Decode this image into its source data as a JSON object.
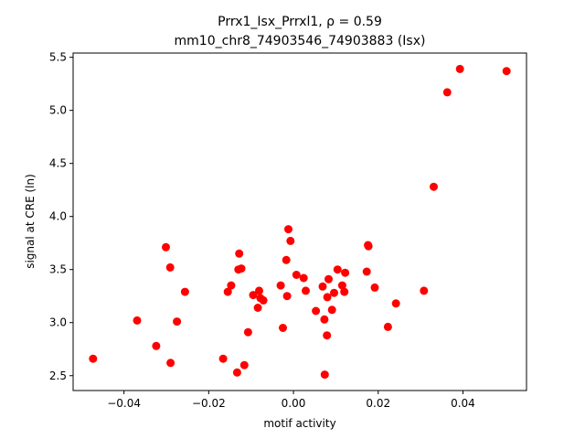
{
  "chart_data": {
    "type": "scatter",
    "title_line1": "Prrx1_Isx_Prrxl1, ρ = 0.59",
    "title_line2": "mm10_chr8_74903546_74903883 (Isx)",
    "xlabel": "motif activity",
    "ylabel": "signal at CRE (ln)",
    "xlim": [
      -0.052,
      0.055
    ],
    "ylim": [
      2.36,
      5.54
    ],
    "xticks": [
      -0.04,
      -0.02,
      0.0,
      0.02,
      0.04
    ],
    "xtick_labels": [
      "−0.04",
      "−0.02",
      "0.00",
      "0.02",
      "0.04"
    ],
    "yticks": [
      2.5,
      3.0,
      3.5,
      4.0,
      4.5,
      5.0,
      5.5
    ],
    "ytick_labels": [
      "2.5",
      "3.0",
      "3.5",
      "4.0",
      "4.5",
      "5.0",
      "5.5"
    ],
    "marker_color": "#ff0000",
    "grid": false,
    "points": [
      {
        "x": -0.0473,
        "y": 2.66
      },
      {
        "x": -0.0369,
        "y": 3.02
      },
      {
        "x": -0.0324,
        "y": 2.78
      },
      {
        "x": -0.0301,
        "y": 3.71
      },
      {
        "x": -0.0291,
        "y": 3.52
      },
      {
        "x": -0.029,
        "y": 2.62
      },
      {
        "x": -0.0275,
        "y": 3.01
      },
      {
        "x": -0.0256,
        "y": 3.29
      },
      {
        "x": -0.0166,
        "y": 2.66
      },
      {
        "x": -0.0155,
        "y": 3.29
      },
      {
        "x": -0.0147,
        "y": 3.35
      },
      {
        "x": -0.0133,
        "y": 2.53
      },
      {
        "x": -0.0128,
        "y": 3.65
      },
      {
        "x": -0.013,
        "y": 3.5
      },
      {
        "x": -0.0123,
        "y": 3.51
      },
      {
        "x": -0.0116,
        "y": 2.6
      },
      {
        "x": -0.0107,
        "y": 2.91
      },
      {
        "x": -0.0095,
        "y": 3.26
      },
      {
        "x": -0.0084,
        "y": 3.14
      },
      {
        "x": -0.0081,
        "y": 3.3
      },
      {
        "x": -0.0078,
        "y": 3.23
      },
      {
        "x": -0.0071,
        "y": 3.21
      },
      {
        "x": -0.003,
        "y": 3.35
      },
      {
        "x": -0.0025,
        "y": 2.95
      },
      {
        "x": -0.0017,
        "y": 3.59
      },
      {
        "x": -0.0015,
        "y": 3.25
      },
      {
        "x": -0.0012,
        "y": 3.88
      },
      {
        "x": -0.0007,
        "y": 3.77
      },
      {
        "x": 0.0007,
        "y": 3.45
      },
      {
        "x": 0.0024,
        "y": 3.42
      },
      {
        "x": 0.0029,
        "y": 3.3
      },
      {
        "x": 0.0053,
        "y": 3.11
      },
      {
        "x": 0.0069,
        "y": 3.34
      },
      {
        "x": 0.0073,
        "y": 3.03
      },
      {
        "x": 0.0074,
        "y": 2.51
      },
      {
        "x": 0.0079,
        "y": 2.88
      },
      {
        "x": 0.008,
        "y": 3.24
      },
      {
        "x": 0.0083,
        "y": 3.41
      },
      {
        "x": 0.0091,
        "y": 3.12
      },
      {
        "x": 0.0096,
        "y": 3.28
      },
      {
        "x": 0.0104,
        "y": 3.5
      },
      {
        "x": 0.0115,
        "y": 3.35
      },
      {
        "x": 0.012,
        "y": 3.29
      },
      {
        "x": 0.0122,
        "y": 3.47
      },
      {
        "x": 0.0173,
        "y": 3.48
      },
      {
        "x": 0.0176,
        "y": 3.73
      },
      {
        "x": 0.0177,
        "y": 3.72
      },
      {
        "x": 0.0192,
        "y": 3.33
      },
      {
        "x": 0.0223,
        "y": 2.96
      },
      {
        "x": 0.0242,
        "y": 3.18
      },
      {
        "x": 0.0308,
        "y": 3.3
      },
      {
        "x": 0.0331,
        "y": 4.28
      },
      {
        "x": 0.0363,
        "y": 5.17
      },
      {
        "x": 0.0393,
        "y": 5.39
      },
      {
        "x": 0.0503,
        "y": 5.37
      }
    ]
  }
}
